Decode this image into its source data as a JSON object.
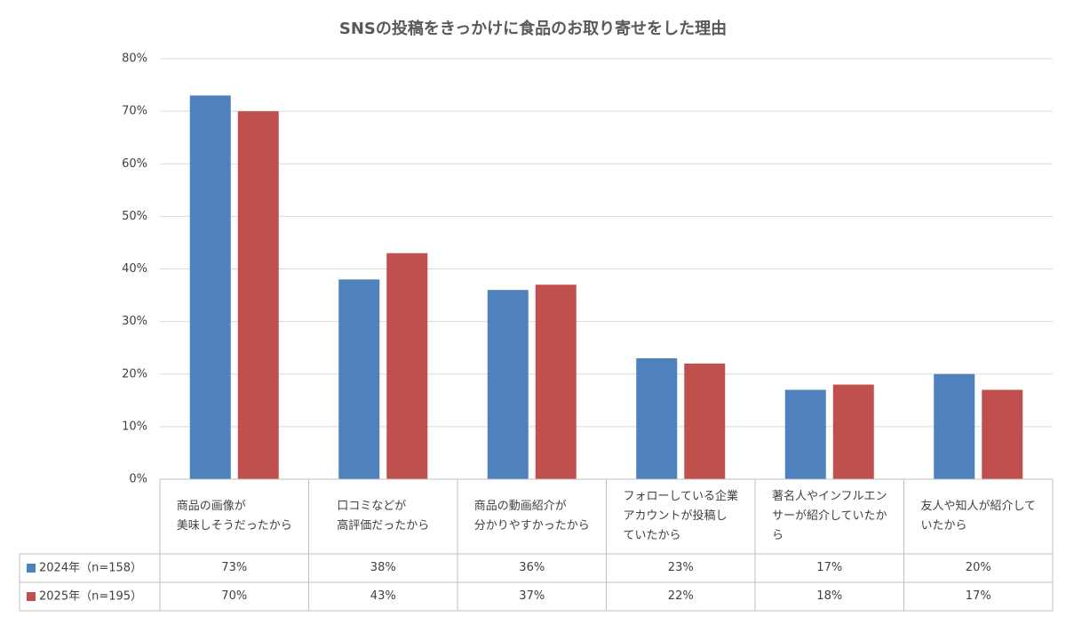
{
  "chart_data": {
    "type": "bar",
    "title": "SNSの投稿をきっかけに食品のお取り寄せをした理由",
    "categories": [
      "商品の画像が\n美味しそうだったから",
      "口コミなどが\n高評価だったから",
      "商品の動画紹介が\n分かりやすかったから",
      "フォローしている企業\nアカウントが投稿し\nていたから",
      "著名人やインフルエン\nサーが紹介していたか\nら",
      "友人や知人が紹介して\nいたから"
    ],
    "series": [
      {
        "name": "2024年（n=158）",
        "color": "#4f81bd",
        "values": [
          73,
          38,
          36,
          23,
          17,
          20
        ],
        "value_labels": [
          "73%",
          "38%",
          "36%",
          "23%",
          "17%",
          "20%"
        ]
      },
      {
        "name": "2025年（n=195）",
        "color": "#c0504d",
        "values": [
          70,
          43,
          37,
          22,
          18,
          17
        ],
        "value_labels": [
          "70%",
          "43%",
          "37%",
          "22%",
          "18%",
          "17%"
        ]
      }
    ],
    "ylim": [
      0,
      80
    ],
    "yticks": [
      {
        "value": 0,
        "label": "0%"
      },
      {
        "value": 10,
        "label": "10%"
      },
      {
        "value": 20,
        "label": "20%"
      },
      {
        "value": 30,
        "label": "30%"
      },
      {
        "value": 40,
        "label": "40%"
      },
      {
        "value": 50,
        "label": "50%"
      },
      {
        "value": 60,
        "label": "60%"
      },
      {
        "value": 70,
        "label": "70%"
      },
      {
        "value": 80,
        "label": "80%"
      }
    ],
    "grid": true
  }
}
